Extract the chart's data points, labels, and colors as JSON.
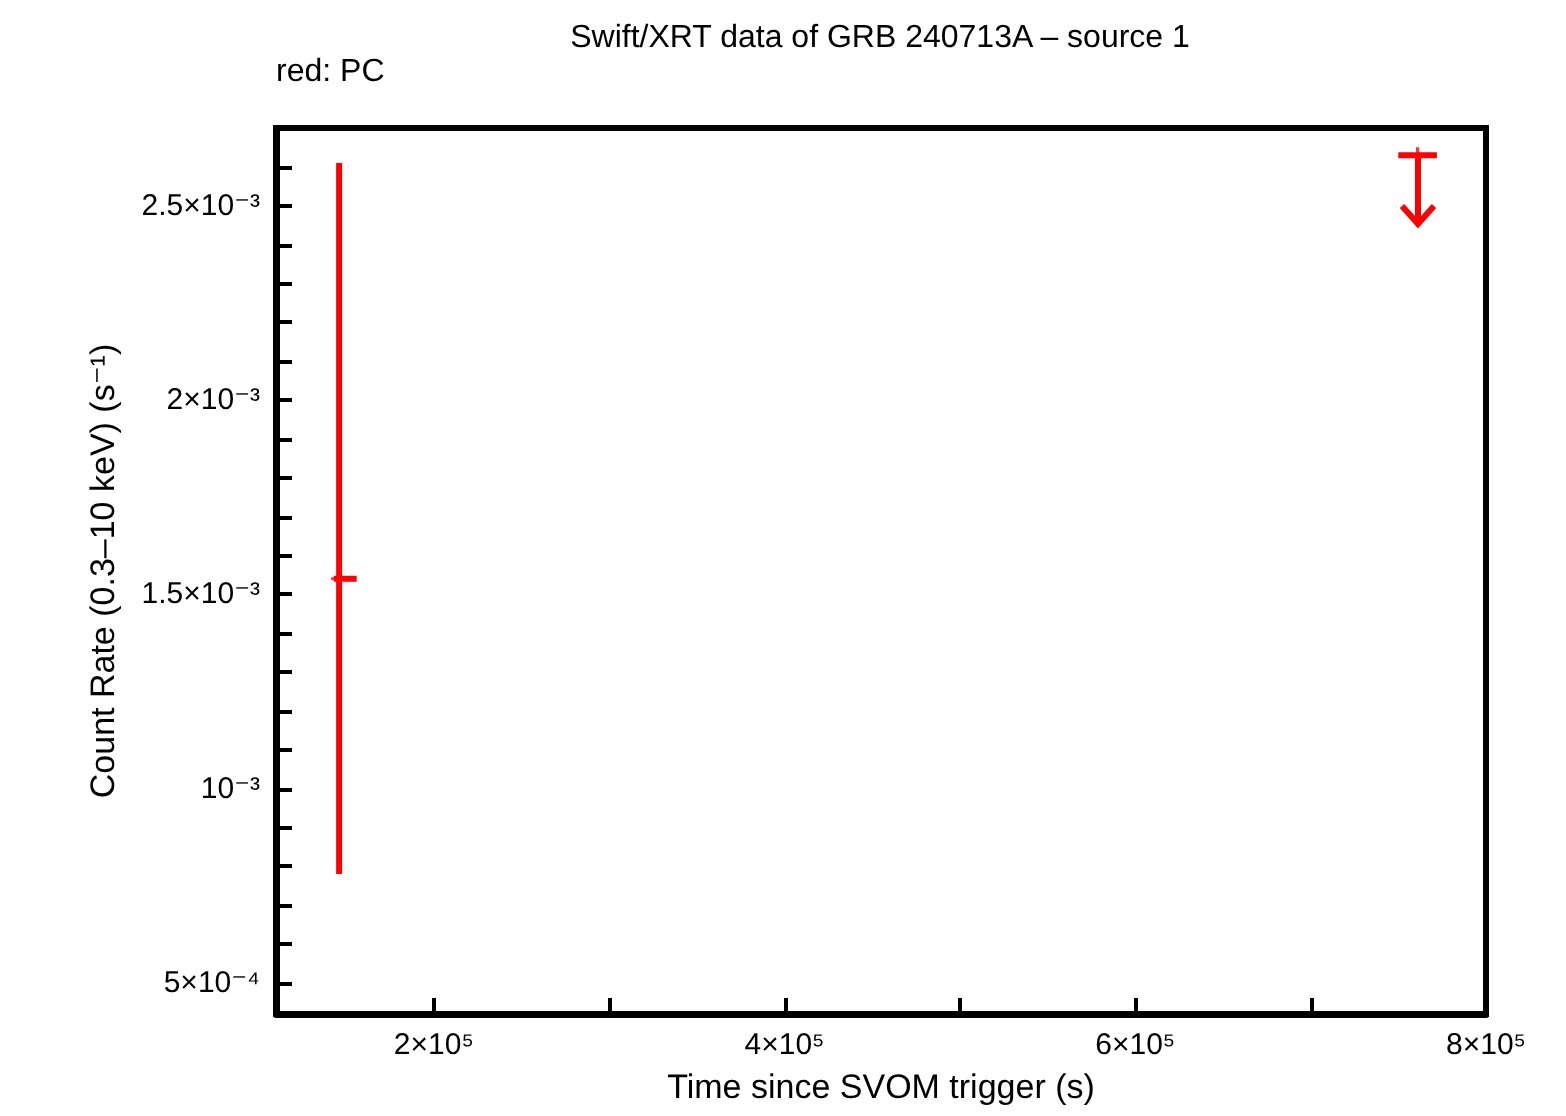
{
  "chart_data": {
    "type": "scatter",
    "title": "Swift/XRT data of GRB 240713A – source 1",
    "xlabel": "Time since SVOM trigger (s)",
    "ylabel": "Count Rate (0.3–10 keV) (s⁻¹)",
    "annotations": [
      "red: PC"
    ],
    "xlim": [
      110000,
      800000
    ],
    "ylim": [
      0.00042,
      0.0027
    ],
    "xticks": [
      {
        "value": 200000,
        "label": "2×10⁵"
      },
      {
        "value": 300000,
        "label": null
      },
      {
        "value": 400000,
        "label": "4×10⁵"
      },
      {
        "value": 500000,
        "label": null
      },
      {
        "value": 600000,
        "label": "6×10⁵"
      },
      {
        "value": 700000,
        "label": null
      },
      {
        "value": 800000,
        "label": "8×10⁵"
      }
    ],
    "yticks": [
      {
        "value": 0.0005,
        "label": "5×10⁻⁴"
      },
      {
        "value": 0.0006,
        "label": null
      },
      {
        "value": 0.0007,
        "label": null
      },
      {
        "value": 0.0008,
        "label": null
      },
      {
        "value": 0.0009,
        "label": null
      },
      {
        "value": 0.001,
        "label": "10⁻³"
      },
      {
        "value": 0.0011,
        "label": null
      },
      {
        "value": 0.0012,
        "label": null
      },
      {
        "value": 0.0013,
        "label": null
      },
      {
        "value": 0.0014,
        "label": null
      },
      {
        "value": 0.0015,
        "label": "1.5×10⁻³"
      },
      {
        "value": 0.0016,
        "label": null
      },
      {
        "value": 0.0017,
        "label": null
      },
      {
        "value": 0.0018,
        "label": null
      },
      {
        "value": 0.0019,
        "label": null
      },
      {
        "value": 0.002,
        "label": "2×10⁻³"
      },
      {
        "value": 0.0021,
        "label": null
      },
      {
        "value": 0.0022,
        "label": null
      },
      {
        "value": 0.0023,
        "label": null
      },
      {
        "value": 0.0024,
        "label": null
      },
      {
        "value": 0.0025,
        "label": "2.5×10⁻³"
      },
      {
        "value": 0.0026,
        "label": null
      }
    ],
    "grid": false,
    "series": [
      {
        "color": "#ff0000",
        "marker": "cross",
        "x": [
          146000
        ],
        "values": [
          0.00154
        ],
        "errors": [
          [
            0.00078,
            0.00261
          ]
        ],
        "xerrors": [
          [
            143000,
            156000
          ]
        ]
      },
      {
        "color": "#ff0000",
        "marker": "cross",
        "x": [
          761000
        ],
        "values": [
          0.00263
        ],
        "xerrors": [
          [
            750000,
            772000
          ]
        ]
      }
    ]
  }
}
